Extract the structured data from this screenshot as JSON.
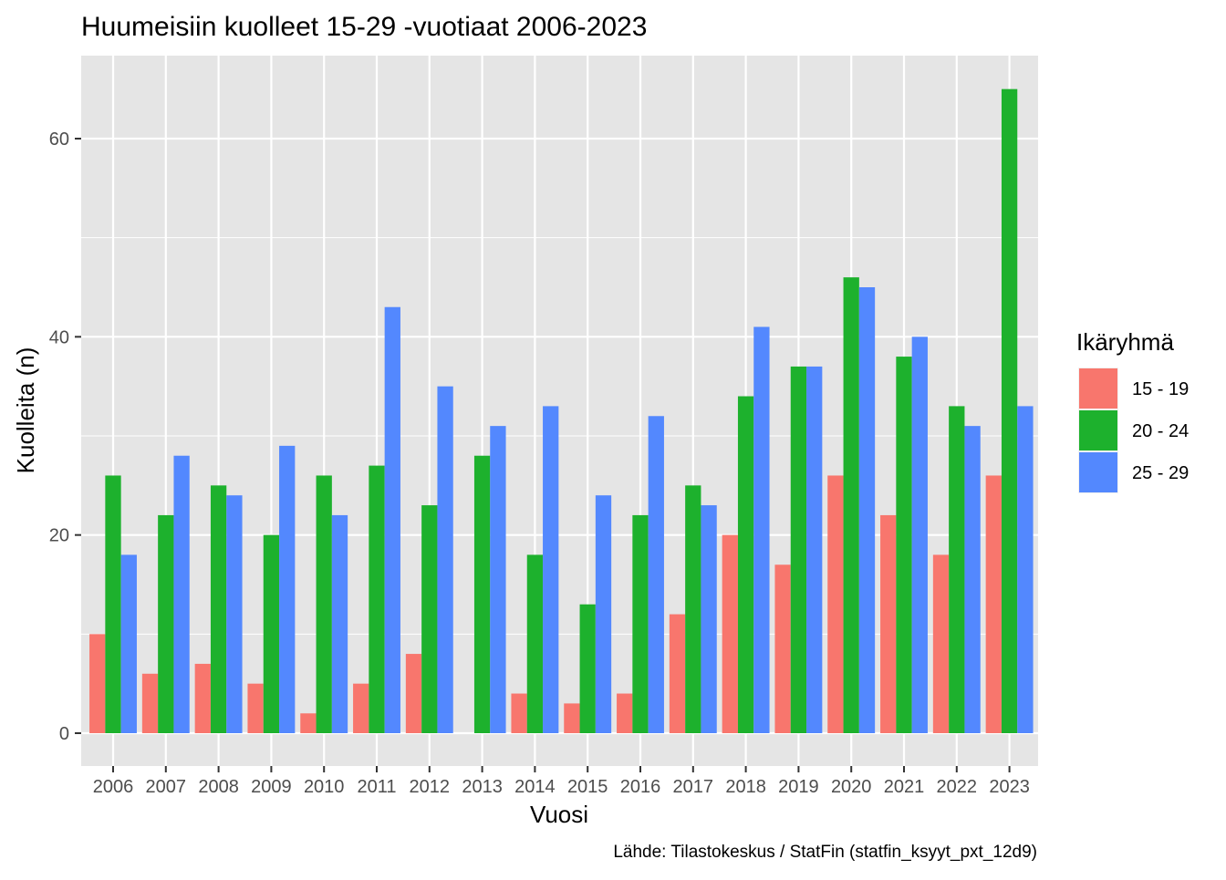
{
  "chart_data": {
    "type": "bar",
    "title": "Huumeisiin kuolleet 15-29 -vuotiaat 2006-2023",
    "xlabel": "Vuosi",
    "ylabel": "Kuolleita (n)",
    "caption": "Lähde: Tilastokeskus / StatFin (statfin_ksyyt_pxt_12d9)",
    "ylim": [
      0,
      68
    ],
    "yticks": [
      0,
      20,
      40,
      60
    ],
    "grid": true,
    "legend": {
      "title": "Ikäryhmä",
      "position": "right"
    },
    "categories": [
      "2006",
      "2007",
      "2008",
      "2009",
      "2010",
      "2011",
      "2012",
      "2013",
      "2014",
      "2015",
      "2016",
      "2017",
      "2018",
      "2019",
      "2020",
      "2021",
      "2022",
      "2023"
    ],
    "series": [
      {
        "name": "15 - 19",
        "color": "#F8766D",
        "values": [
          10,
          6,
          7,
          5,
          2,
          5,
          8,
          0,
          4,
          3,
          4,
          12,
          20,
          17,
          26,
          22,
          18,
          26
        ]
      },
      {
        "name": "20 - 24",
        "color": "#1DB12D",
        "values": [
          26,
          22,
          25,
          20,
          26,
          27,
          23,
          28,
          18,
          13,
          22,
          25,
          34,
          37,
          46,
          38,
          33,
          65
        ]
      },
      {
        "name": "25 - 29",
        "color": "#5388FE",
        "values": [
          18,
          28,
          24,
          29,
          22,
          43,
          35,
          31,
          33,
          24,
          32,
          23,
          41,
          37,
          45,
          40,
          31,
          33
        ]
      }
    ]
  },
  "colors": {
    "panel_background": "#E5E5E5",
    "grid": "#FFFFFF",
    "text": "#000000",
    "tick_text": "#4D4D4D"
  }
}
